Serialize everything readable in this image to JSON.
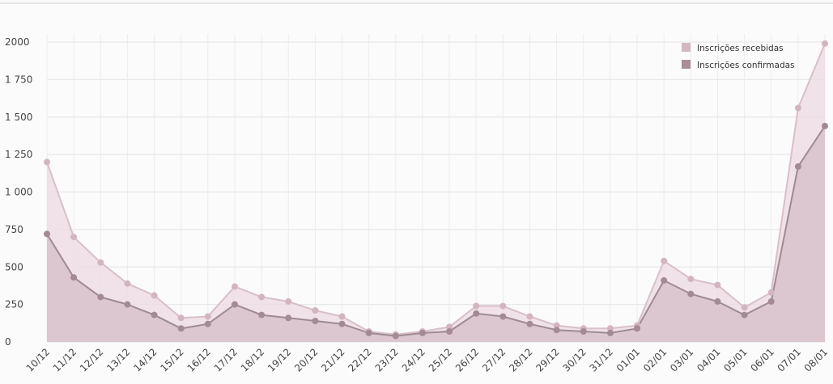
{
  "chart_data": {
    "type": "area",
    "title": "",
    "xlabel": "",
    "ylabel": "",
    "ylim": [
      0,
      2000
    ],
    "yticks": [
      0,
      250,
      500,
      750,
      1000,
      1250,
      1500,
      1750,
      2000
    ],
    "ytick_labels": [
      "0",
      "250",
      "500",
      "750",
      "1 000",
      "1 250",
      "1 500",
      "1 750",
      "2000"
    ],
    "grid": true,
    "legend_position": "top-right",
    "categories": [
      "10/12",
      "11/12",
      "12/12",
      "13/12",
      "14/12",
      "15/12",
      "16/12",
      "17/12",
      "18/12",
      "19/12",
      "20/12",
      "21/12",
      "22/12",
      "23/12",
      "24/12",
      "25/12",
      "26/12",
      "27/12",
      "28/12",
      "29/12",
      "30/12",
      "31/12",
      "01/01",
      "02/01",
      "03/01",
      "04/01",
      "05/01",
      "06/01",
      "07/01",
      "08/01"
    ],
    "series": [
      {
        "name": "Inscrições recebidas",
        "color": "#d2b8c3",
        "values": [
          1200,
          700,
          530,
          390,
          310,
          160,
          170,
          370,
          300,
          270,
          210,
          170,
          70,
          50,
          70,
          100,
          240,
          240,
          170,
          110,
          90,
          90,
          110,
          540,
          420,
          380,
          230,
          330,
          1560,
          1990
        ]
      },
      {
        "name": "Inscrições confirmadas",
        "color": "#a98d98",
        "values": [
          720,
          430,
          300,
          250,
          180,
          90,
          120,
          250,
          180,
          160,
          140,
          120,
          60,
          40,
          60,
          70,
          190,
          170,
          120,
          80,
          70,
          60,
          90,
          410,
          320,
          270,
          180,
          270,
          1170,
          1440
        ]
      }
    ]
  }
}
